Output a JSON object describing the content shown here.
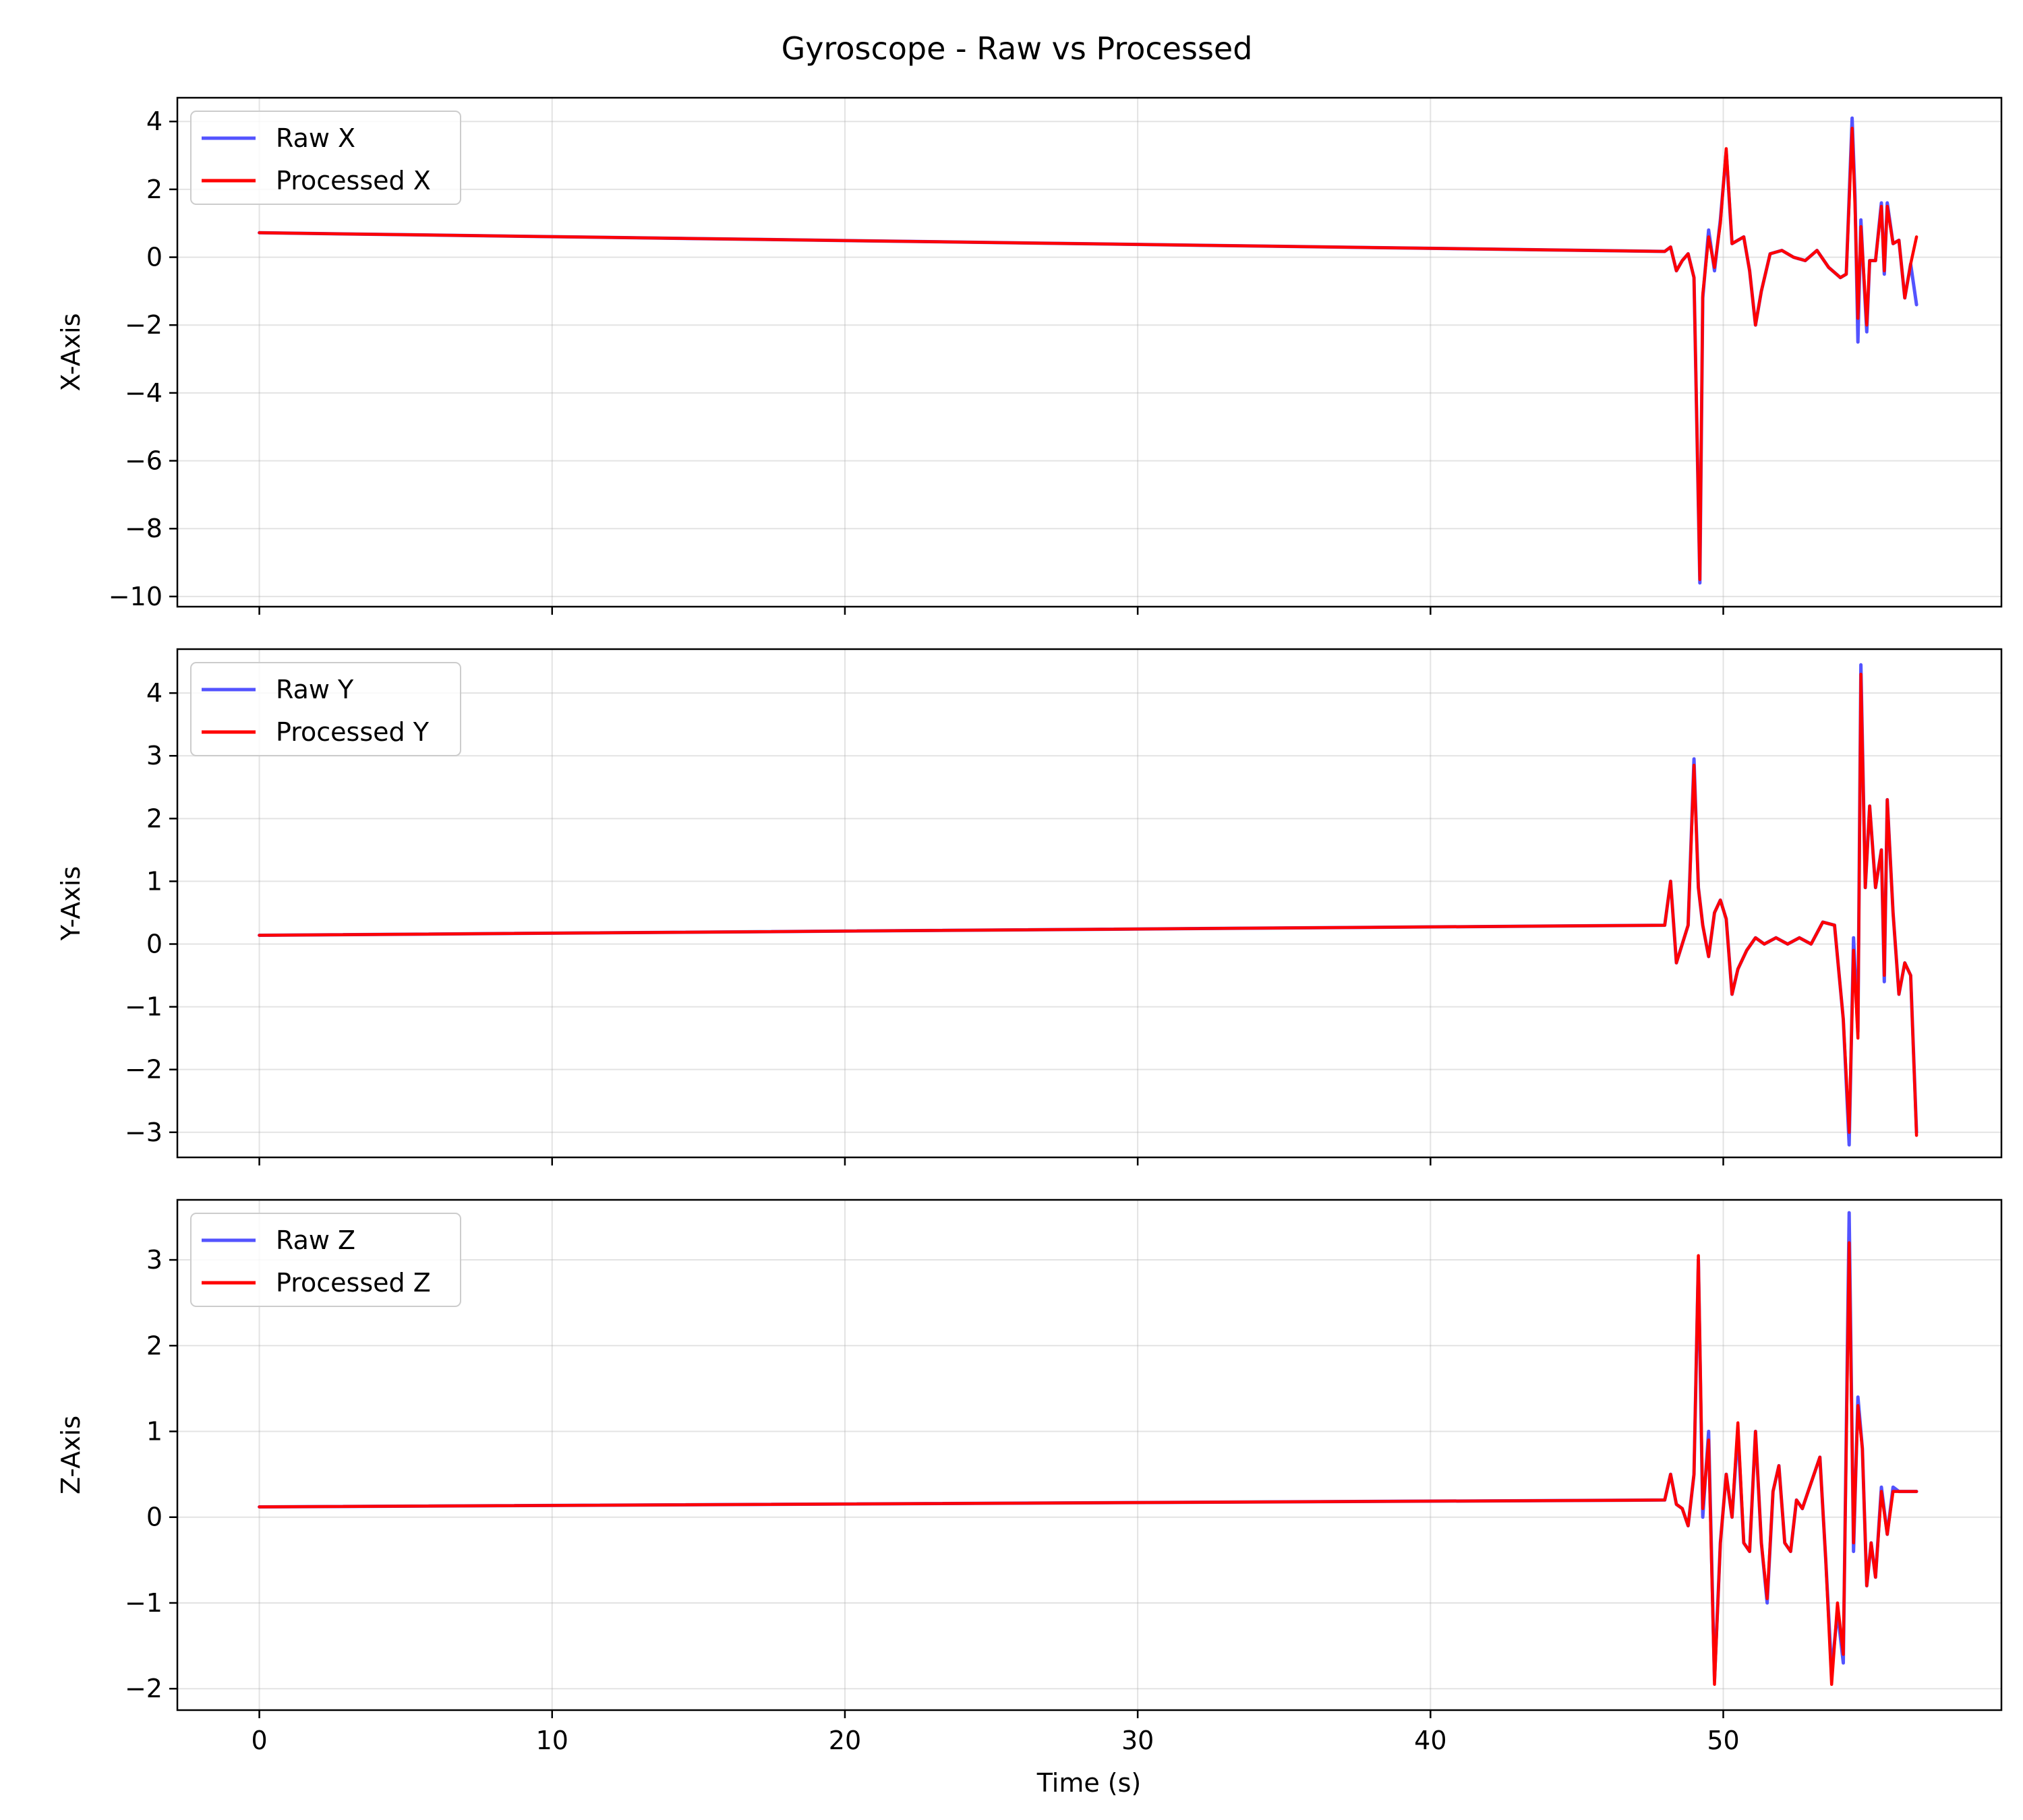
{
  "figure": {
    "title": "Gyroscope - Raw vs Processed",
    "xlabel": "Time (s)"
  },
  "chart_data": [
    {
      "type": "line",
      "ylabel": "X-Axis",
      "xlim": [
        -2.8,
        59.5
      ],
      "ylim": [
        -10.3,
        4.7
      ],
      "xticks": [
        0,
        10,
        20,
        30,
        40,
        50
      ],
      "yticks": [
        4,
        2,
        0,
        -2,
        -4,
        -6,
        -8,
        -10
      ],
      "yticklabels": [
        "4",
        "2",
        "0",
        "−2",
        "−4",
        "−6",
        "−8",
        "−10"
      ],
      "grid": true,
      "legend_position": "upper-left",
      "series": [
        {
          "name": "Raw X",
          "color": "#4040ff",
          "x": [
            0,
            48,
            48.2,
            48.4,
            48.6,
            48.8,
            49.0,
            49.2,
            49.3,
            49.5,
            49.7,
            49.9,
            50.1,
            50.3,
            50.5,
            50.7,
            50.9,
            51.1,
            51.3,
            51.6,
            52,
            52.4,
            52.8,
            53.2,
            53.6,
            54.0,
            54.2,
            54.4,
            54.5,
            54.6,
            54.7,
            54.8,
            54.9,
            55.0,
            55.2,
            55.4,
            55.5,
            55.6,
            55.8,
            56.0,
            56.2,
            56.4,
            56.6
          ],
          "y": [
            0.72,
            0.17,
            0.3,
            -0.4,
            -0.1,
            0.1,
            -0.6,
            -9.6,
            -1.2,
            0.8,
            -0.4,
            1.1,
            3.1,
            0.4,
            0.5,
            0.6,
            -0.4,
            -2.0,
            -1.0,
            0.1,
            0.2,
            0.0,
            -0.1,
            0.2,
            -0.3,
            -0.6,
            -0.5,
            4.1,
            1.8,
            -2.5,
            1.1,
            -0.6,
            -2.2,
            -0.1,
            -0.1,
            1.6,
            -0.5,
            1.6,
            0.4,
            0.5,
            -1.2,
            -0.2,
            -1.4
          ]
        },
        {
          "name": "Processed X",
          "color": "#ff0000",
          "x": [
            0,
            48,
            48.2,
            48.4,
            48.6,
            48.8,
            49.0,
            49.2,
            49.3,
            49.5,
            49.7,
            49.9,
            50.1,
            50.3,
            50.5,
            50.7,
            50.9,
            51.1,
            51.3,
            51.6,
            52,
            52.4,
            52.8,
            53.2,
            53.6,
            54.0,
            54.2,
            54.4,
            54.5,
            54.6,
            54.7,
            54.8,
            54.9,
            55.0,
            55.2,
            55.4,
            55.5,
            55.6,
            55.8,
            56.0,
            56.2,
            56.4,
            56.6
          ],
          "y": [
            0.72,
            0.17,
            0.3,
            -0.4,
            -0.1,
            0.1,
            -0.6,
            -9.5,
            -1.1,
            0.6,
            -0.3,
            1.0,
            3.2,
            0.4,
            0.5,
            0.6,
            -0.4,
            -2.0,
            -1.0,
            0.1,
            0.2,
            0.0,
            -0.1,
            0.2,
            -0.3,
            -0.6,
            -0.5,
            3.8,
            1.5,
            -1.8,
            0.9,
            -0.5,
            -2.0,
            -0.1,
            -0.1,
            1.5,
            -0.4,
            1.5,
            0.4,
            0.5,
            -1.2,
            -0.2,
            0.6
          ]
        }
      ]
    },
    {
      "type": "line",
      "ylabel": "Y-Axis",
      "xlim": [
        -2.8,
        59.5
      ],
      "ylim": [
        -3.4,
        4.7
      ],
      "xticks": [
        0,
        10,
        20,
        30,
        40,
        50
      ],
      "yticks": [
        4,
        3,
        2,
        1,
        0,
        -1,
        -2,
        -3
      ],
      "yticklabels": [
        "4",
        "3",
        "2",
        "1",
        "0",
        "−1",
        "−2",
        "−3"
      ],
      "grid": true,
      "legend_position": "upper-left",
      "series": [
        {
          "name": "Raw Y",
          "color": "#4040ff",
          "x": [
            0,
            48,
            48.2,
            48.4,
            48.6,
            48.8,
            49.0,
            49.15,
            49.3,
            49.5,
            49.7,
            49.9,
            50.1,
            50.3,
            50.5,
            50.8,
            51.1,
            51.4,
            51.8,
            52.2,
            52.6,
            53.0,
            53.4,
            53.8,
            54.1,
            54.3,
            54.45,
            54.6,
            54.7,
            54.85,
            55.0,
            55.2,
            55.4,
            55.5,
            55.6,
            55.8,
            56.0,
            56.2,
            56.4,
            56.6
          ],
          "y": [
            0.14,
            0.3,
            1.0,
            -0.3,
            0.0,
            0.3,
            2.95,
            0.9,
            0.3,
            -0.2,
            0.5,
            0.7,
            0.4,
            -0.8,
            -0.4,
            -0.1,
            0.1,
            0.0,
            0.1,
            0.0,
            0.1,
            0.0,
            0.35,
            0.3,
            -1.2,
            -3.2,
            0.1,
            -1.4,
            4.45,
            0.9,
            2.2,
            0.9,
            1.5,
            -0.6,
            2.3,
            0.5,
            -0.8,
            -0.3,
            -0.5,
            -3.0
          ]
        },
        {
          "name": "Processed Y",
          "color": "#ff0000",
          "x": [
            0,
            48,
            48.2,
            48.4,
            48.6,
            48.8,
            49.0,
            49.15,
            49.3,
            49.5,
            49.7,
            49.9,
            50.1,
            50.3,
            50.5,
            50.8,
            51.1,
            51.4,
            51.8,
            52.2,
            52.6,
            53.0,
            53.4,
            53.8,
            54.1,
            54.3,
            54.45,
            54.6,
            54.7,
            54.85,
            55.0,
            55.2,
            55.4,
            55.5,
            55.6,
            55.8,
            56.0,
            56.2,
            56.4,
            56.6
          ],
          "y": [
            0.14,
            0.3,
            1.0,
            -0.3,
            0.0,
            0.3,
            2.85,
            0.9,
            0.3,
            -0.2,
            0.5,
            0.7,
            0.4,
            -0.8,
            -0.4,
            -0.1,
            0.1,
            0.0,
            0.1,
            0.0,
            0.1,
            0.0,
            0.35,
            0.3,
            -1.2,
            -3.0,
            -0.1,
            -1.5,
            4.3,
            0.9,
            2.2,
            0.9,
            1.5,
            -0.5,
            2.3,
            0.5,
            -0.8,
            -0.3,
            -0.5,
            -3.05
          ]
        }
      ]
    },
    {
      "type": "line",
      "ylabel": "Z-Axis",
      "xlim": [
        -2.8,
        59.5
      ],
      "ylim": [
        -2.25,
        3.7
      ],
      "xticks": [
        0,
        10,
        20,
        30,
        40,
        50
      ],
      "yticks": [
        3,
        2,
        1,
        0,
        -1,
        -2
      ],
      "yticklabels": [
        "3",
        "2",
        "1",
        "0",
        "−1",
        "−2"
      ],
      "grid": true,
      "legend_position": "upper-left",
      "series": [
        {
          "name": "Raw Z",
          "color": "#4040ff",
          "x": [
            0,
            48,
            48.2,
            48.4,
            48.6,
            48.8,
            49.0,
            49.15,
            49.3,
            49.5,
            49.7,
            49.9,
            50.1,
            50.3,
            50.5,
            50.7,
            50.9,
            51.1,
            51.3,
            51.5,
            51.7,
            51.9,
            52.1,
            52.3,
            52.5,
            52.7,
            52.9,
            53.1,
            53.3,
            53.5,
            53.7,
            53.9,
            54.1,
            54.3,
            54.45,
            54.6,
            54.75,
            54.9,
            55.05,
            55.2,
            55.4,
            55.6,
            55.8,
            56.0,
            56.2,
            56.4,
            56.6
          ],
          "y": [
            0.12,
            0.2,
            0.5,
            0.15,
            0.1,
            -0.1,
            0.5,
            3.0,
            0.0,
            1.0,
            -1.9,
            -0.3,
            0.5,
            0.0,
            1.0,
            -0.3,
            -0.4,
            1.0,
            -0.3,
            -1.0,
            0.3,
            0.6,
            -0.3,
            -0.4,
            0.2,
            0.1,
            0.3,
            0.5,
            0.7,
            -0.5,
            -1.8,
            -1.1,
            -1.7,
            3.55,
            -0.4,
            1.4,
            0.8,
            -0.8,
            -0.3,
            -0.7,
            0.35,
            -0.2,
            0.35,
            0.3,
            0.3,
            0.3,
            0.3
          ]
        },
        {
          "name": "Processed Z",
          "color": "#ff0000",
          "x": [
            0,
            48,
            48.2,
            48.4,
            48.6,
            48.8,
            49.0,
            49.15,
            49.3,
            49.5,
            49.7,
            49.9,
            50.1,
            50.3,
            50.5,
            50.7,
            50.9,
            51.1,
            51.3,
            51.5,
            51.7,
            51.9,
            52.1,
            52.3,
            52.5,
            52.7,
            52.9,
            53.1,
            53.3,
            53.5,
            53.7,
            53.9,
            54.1,
            54.3,
            54.45,
            54.6,
            54.75,
            54.9,
            55.05,
            55.2,
            55.4,
            55.6,
            55.8,
            56.0,
            56.2,
            56.4,
            56.6
          ],
          "y": [
            0.12,
            0.2,
            0.5,
            0.15,
            0.1,
            -0.1,
            0.5,
            3.05,
            0.1,
            0.9,
            -1.95,
            -0.3,
            0.5,
            0.0,
            1.1,
            -0.3,
            -0.4,
            1.0,
            -0.3,
            -0.95,
            0.3,
            0.6,
            -0.3,
            -0.4,
            0.2,
            0.1,
            0.3,
            0.5,
            0.7,
            -0.5,
            -1.95,
            -1.0,
            -1.6,
            3.2,
            -0.3,
            1.3,
            0.8,
            -0.8,
            -0.3,
            -0.7,
            0.3,
            -0.2,
            0.3,
            0.3,
            0.3,
            0.3,
            0.3
          ]
        }
      ]
    }
  ]
}
